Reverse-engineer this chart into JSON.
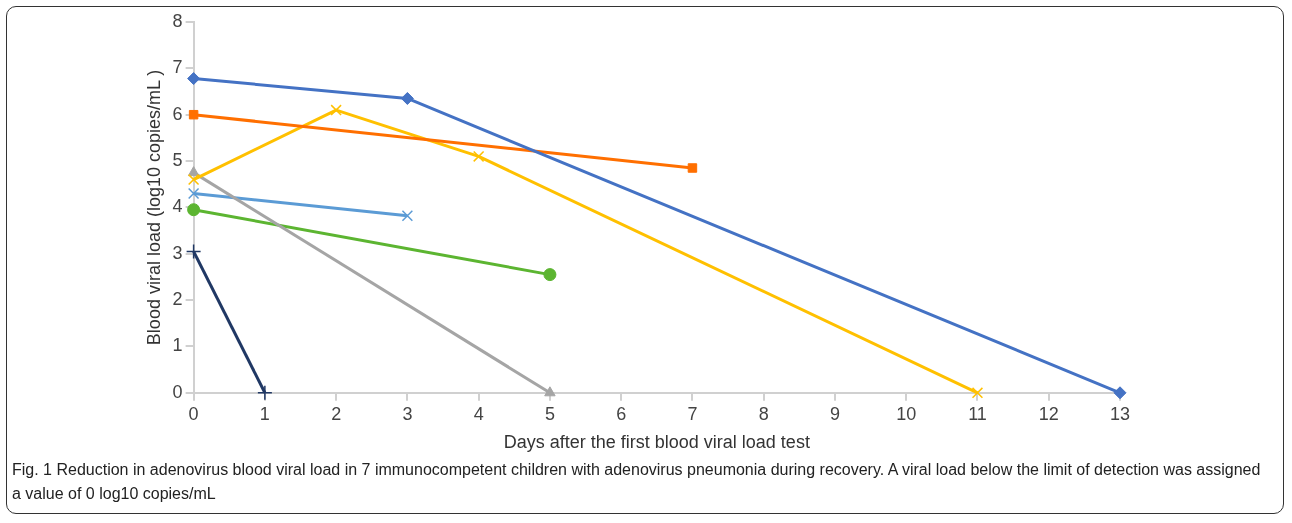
{
  "chart_data": {
    "type": "line",
    "xlabel": "Days after the first blood viral load test",
    "ylabel": "Blood viral load (log10 copies/mL )",
    "xlim": [
      0,
      13
    ],
    "xticks": [
      0,
      1,
      2,
      3,
      4,
      5,
      6,
      7,
      8,
      9,
      10,
      11,
      12,
      13
    ],
    "ylim": [
      0,
      8
    ],
    "yticks": [
      0,
      1,
      2,
      3,
      4,
      5,
      6,
      7,
      8
    ],
    "grid": false,
    "legend": false,
    "series": [
      {
        "color": "#4472c4",
        "marker": "diamond",
        "x": [
          0,
          3,
          13
        ],
        "values": [
          6.78,
          6.35,
          0
        ]
      },
      {
        "color": "#ff6f00",
        "marker": "square",
        "x": [
          0,
          7
        ],
        "values": [
          6.0,
          4.85
        ]
      },
      {
        "color": "#ffc000",
        "marker": "cross",
        "x": [
          0,
          2,
          4,
          11
        ],
        "values": [
          4.6,
          6.1,
          5.1,
          0
        ]
      },
      {
        "color": "#a5a5a5",
        "marker": "triangle",
        "x": [
          0,
          5
        ],
        "values": [
          4.75,
          0
        ]
      },
      {
        "color": "#5b9bd5",
        "marker": "cross",
        "x": [
          0,
          3
        ],
        "values": [
          4.3,
          3.82
        ]
      },
      {
        "color": "#5cb531",
        "marker": "circle",
        "x": [
          0,
          5
        ],
        "values": [
          3.95,
          2.55
        ]
      },
      {
        "color": "#203864",
        "marker": "plus",
        "x": [
          0,
          1
        ],
        "values": [
          3.05,
          0
        ]
      }
    ],
    "annotations": [
      "Fig. 1 Reduction in adenovirus blood viral load in 7 immunocompetent children with adenovirus pneumonia during recovery. A viral load below the limit of detection was assigned a value of 0 log10 copies/mL"
    ]
  }
}
